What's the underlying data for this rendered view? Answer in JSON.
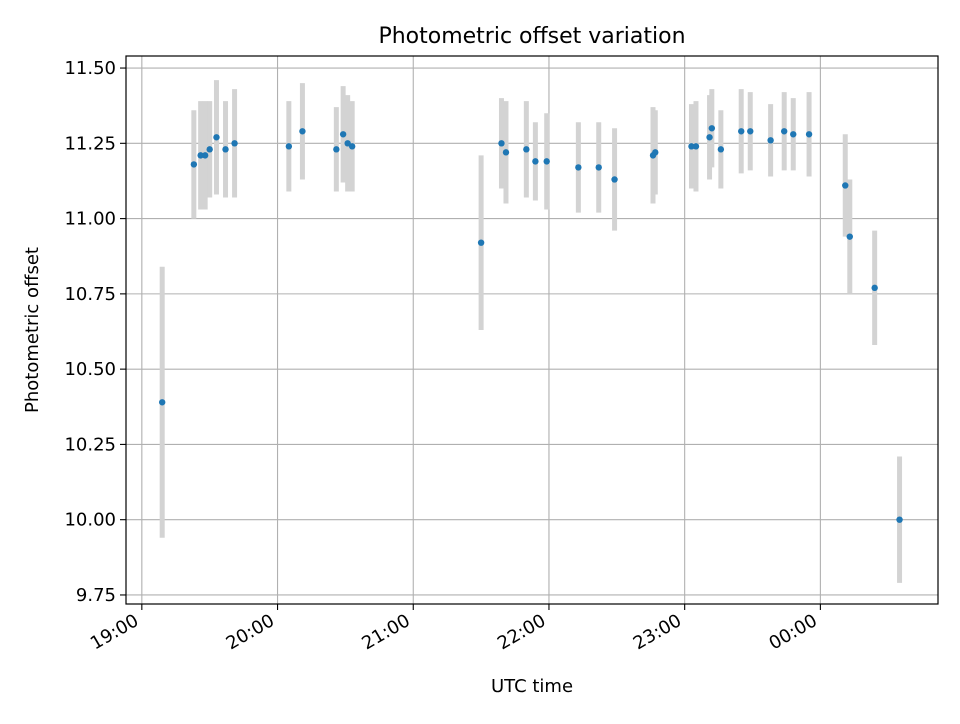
{
  "chart_data": {
    "type": "scatter",
    "title": "Photometric offset variation",
    "xlabel": "UTC time",
    "ylabel": "Photometric offset",
    "x_ticks": [
      "19:00",
      "20:00",
      "21:00",
      "22:00",
      "23:00",
      "00:00"
    ],
    "y_ticks": [
      "9.75",
      "10.00",
      "10.25",
      "10.50",
      "10.75",
      "11.00",
      "11.25",
      "11.50"
    ],
    "ylim": [
      9.72,
      11.54
    ],
    "xlim": [
      "18:53",
      "00:52"
    ],
    "grid": true,
    "legend": "none",
    "colors": {
      "point": "#1f77b4",
      "errorbar": "#d3d3d3",
      "grid": "#b0b0b0"
    },
    "points": [
      {
        "time": "19:09",
        "y": 10.39,
        "err": 0.45
      },
      {
        "time": "19:23",
        "y": 11.18,
        "err": 0.18
      },
      {
        "time": "19:26",
        "y": 11.21,
        "err": 0.18
      },
      {
        "time": "19:28",
        "y": 11.21,
        "err": 0.18
      },
      {
        "time": "19:30",
        "y": 11.23,
        "err": 0.16
      },
      {
        "time": "19:33",
        "y": 11.27,
        "err": 0.19
      },
      {
        "time": "19:37",
        "y": 11.23,
        "err": 0.16
      },
      {
        "time": "19:41",
        "y": 11.25,
        "err": 0.18
      },
      {
        "time": "20:05",
        "y": 11.24,
        "err": 0.15
      },
      {
        "time": "20:11",
        "y": 11.29,
        "err": 0.16
      },
      {
        "time": "20:26",
        "y": 11.23,
        "err": 0.14
      },
      {
        "time": "20:29",
        "y": 11.28,
        "err": 0.16
      },
      {
        "time": "20:31",
        "y": 11.25,
        "err": 0.16
      },
      {
        "time": "20:33",
        "y": 11.24,
        "err": 0.15
      },
      {
        "time": "21:30",
        "y": 10.92,
        "err": 0.29
      },
      {
        "time": "21:39",
        "y": 11.25,
        "err": 0.15
      },
      {
        "time": "21:41",
        "y": 11.22,
        "err": 0.17
      },
      {
        "time": "21:50",
        "y": 11.23,
        "err": 0.16
      },
      {
        "time": "21:54",
        "y": 11.19,
        "err": 0.13
      },
      {
        "time": "21:59",
        "y": 11.19,
        "err": 0.16
      },
      {
        "time": "22:13",
        "y": 11.17,
        "err": 0.15
      },
      {
        "time": "22:22",
        "y": 11.17,
        "err": 0.15
      },
      {
        "time": "22:29",
        "y": 11.13,
        "err": 0.17
      },
      {
        "time": "22:46",
        "y": 11.21,
        "err": 0.16
      },
      {
        "time": "22:47",
        "y": 11.22,
        "err": 0.14
      },
      {
        "time": "23:03",
        "y": 11.24,
        "err": 0.14
      },
      {
        "time": "23:05",
        "y": 11.24,
        "err": 0.15
      },
      {
        "time": "23:11",
        "y": 11.27,
        "err": 0.14
      },
      {
        "time": "23:12",
        "y": 11.3,
        "err": 0.13
      },
      {
        "time": "23:16",
        "y": 11.23,
        "err": 0.13
      },
      {
        "time": "23:25",
        "y": 11.29,
        "err": 0.14
      },
      {
        "time": "23:29",
        "y": 11.29,
        "err": 0.13
      },
      {
        "time": "23:38",
        "y": 11.26,
        "err": 0.12
      },
      {
        "time": "23:44",
        "y": 11.29,
        "err": 0.13
      },
      {
        "time": "23:48",
        "y": 11.28,
        "err": 0.12
      },
      {
        "time": "23:55",
        "y": 11.28,
        "err": 0.14
      },
      {
        "time": "00:11",
        "y": 11.11,
        "err": 0.17
      },
      {
        "time": "00:13",
        "y": 10.94,
        "err": 0.19
      },
      {
        "time": "00:24",
        "y": 10.77,
        "err": 0.19
      },
      {
        "time": "00:35",
        "y": 10.0,
        "err": 0.21
      }
    ]
  }
}
